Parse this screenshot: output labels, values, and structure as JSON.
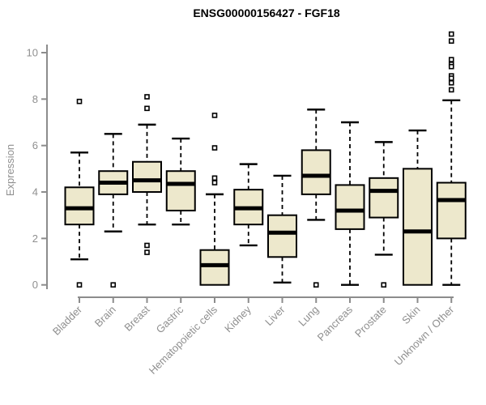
{
  "title": "ENSG00000156427 - FGF18",
  "ylabel": "Expression",
  "chart_data": {
    "type": "boxplot",
    "title": "ENSG00000156427 - FGF18",
    "xlabel": "",
    "ylabel": "Expression",
    "ylim": [
      0,
      11
    ],
    "yticks": [
      0,
      2,
      4,
      6,
      8,
      10
    ],
    "grid": false,
    "legend": "none",
    "categories": [
      "Bladder",
      "Brain",
      "Breast",
      "Gastric",
      "Hematopoietic cells",
      "Kidney",
      "Liver",
      "Lung",
      "Pancreas",
      "Prostate",
      "Skin",
      "Unknown / Other"
    ],
    "boxes": [
      {
        "name": "Bladder",
        "whisker_low": 1.1,
        "q1": 2.6,
        "median": 3.3,
        "q3": 4.2,
        "whisker_high": 5.7,
        "outliers": [
          7.9,
          0
        ]
      },
      {
        "name": "Brain",
        "whisker_low": 2.3,
        "q1": 3.9,
        "median": 4.4,
        "q3": 4.9,
        "whisker_high": 6.5,
        "outliers": [
          0
        ]
      },
      {
        "name": "Breast",
        "whisker_low": 2.6,
        "q1": 4.0,
        "median": 4.5,
        "q3": 5.3,
        "whisker_high": 6.9,
        "outliers": [
          8.1,
          7.6,
          1.7,
          1.4
        ]
      },
      {
        "name": "Gastric",
        "whisker_low": 2.6,
        "q1": 3.2,
        "median": 4.35,
        "q3": 4.9,
        "whisker_high": 6.3,
        "outliers": []
      },
      {
        "name": "Hematopoietic cells",
        "whisker_low": 0,
        "q1": 0,
        "median": 0.85,
        "q3": 1.5,
        "whisker_high": 3.9,
        "outliers": [
          7.3,
          5.9,
          4.6,
          4.4
        ]
      },
      {
        "name": "Kidney",
        "whisker_low": 1.7,
        "q1": 2.6,
        "median": 3.3,
        "q3": 4.1,
        "whisker_high": 5.2,
        "outliers": []
      },
      {
        "name": "Liver",
        "whisker_low": 0.1,
        "q1": 1.2,
        "median": 2.25,
        "q3": 3.0,
        "whisker_high": 4.7,
        "outliers": []
      },
      {
        "name": "Lung",
        "whisker_low": 2.8,
        "q1": 3.9,
        "median": 4.7,
        "q3": 5.8,
        "whisker_high": 7.55,
        "outliers": [
          0
        ]
      },
      {
        "name": "Pancreas",
        "whisker_low": 0,
        "q1": 2.4,
        "median": 3.2,
        "q3": 4.3,
        "whisker_high": 7.0,
        "outliers": []
      },
      {
        "name": "Prostate",
        "whisker_low": 1.3,
        "q1": 2.9,
        "median": 4.05,
        "q3": 4.6,
        "whisker_high": 6.15,
        "outliers": [
          0
        ]
      },
      {
        "name": "Skin",
        "whisker_low": 0,
        "q1": 0,
        "median": 2.3,
        "q3": 5.0,
        "whisker_high": 6.65,
        "outliers": []
      },
      {
        "name": "Unknown / Other",
        "whisker_low": 0,
        "q1": 2.0,
        "median": 3.65,
        "q3": 4.4,
        "whisker_high": 7.95,
        "outliers": [
          10.8,
          10.5,
          9.7,
          9.5,
          9.4,
          9.0,
          8.9,
          8.7,
          8.4
        ]
      }
    ],
    "colors": {
      "box_fill": "#EDE8CC",
      "box_border": "#000000",
      "median": "#000000",
      "whisker": "#000000",
      "outlier_fill": "#FFFFFF",
      "axis": "#8C8C8C",
      "tick_label": "#8F8F8F",
      "title": "#000000",
      "background": "#FFFFFF"
    }
  }
}
